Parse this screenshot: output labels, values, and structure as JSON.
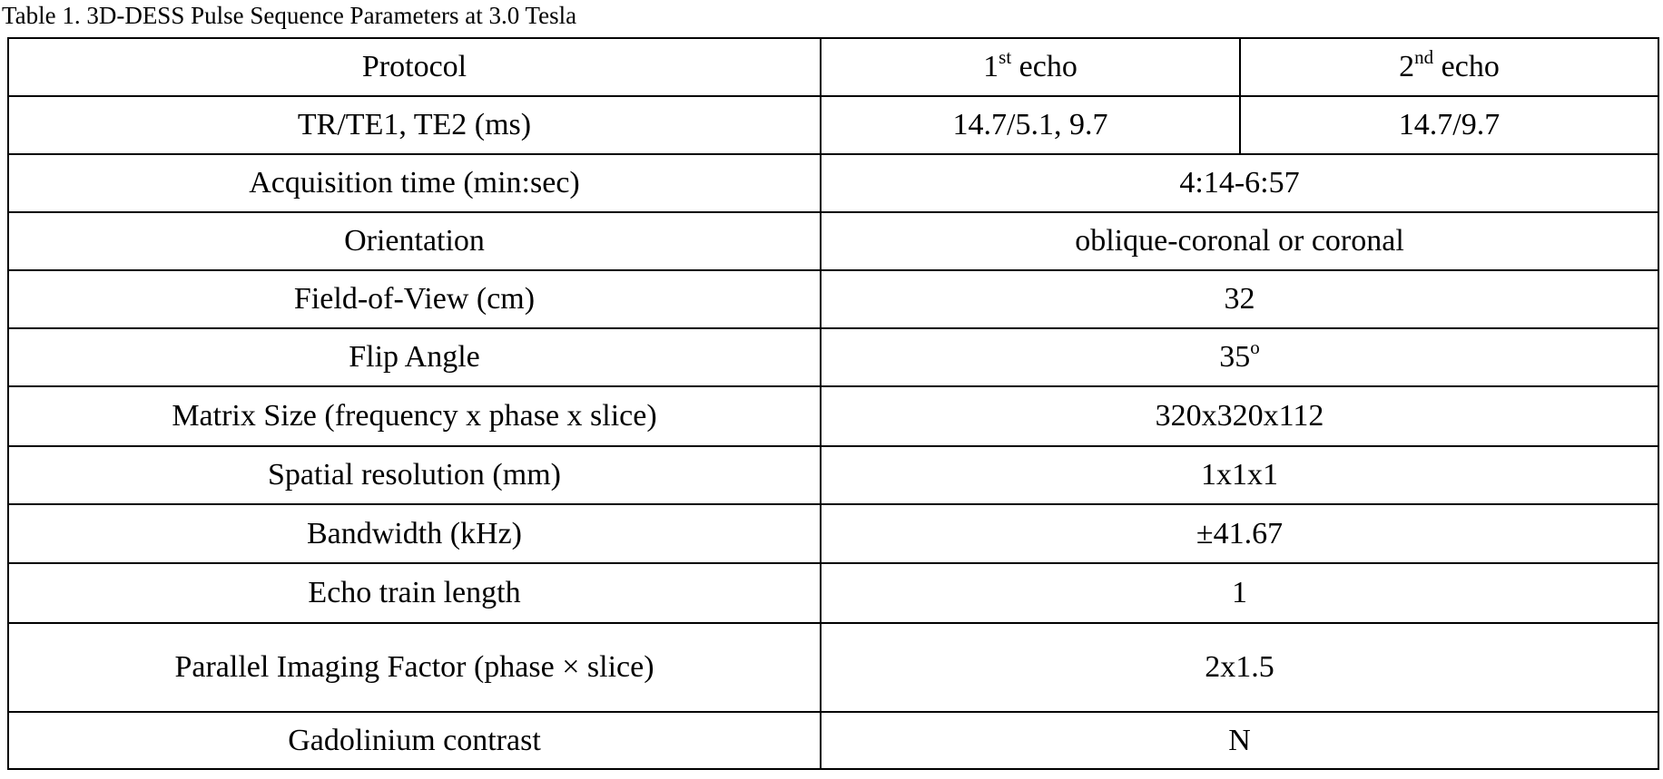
{
  "caption": "Table 1. 3D-DESS Pulse Sequence Parameters at 3.0 Tesla",
  "header": {
    "protocol": "Protocol",
    "echo1_num": "1",
    "echo1_sup": "st",
    "echo1_word": " echo",
    "echo2_num": "2",
    "echo2_sup": "nd",
    "echo2_word": " echo"
  },
  "tr_row": {
    "label": "TR/TE1, TE2 (ms)",
    "echo1": "14.7/5.1, 9.7",
    "echo2": "14.7/9.7"
  },
  "rows": [
    {
      "label": "Acquisition time (min:sec)",
      "value": "4:14-6:57"
    },
    {
      "label": "Orientation",
      "value": "oblique-coronal or coronal"
    },
    {
      "label": "Field-of-View (cm)",
      "value": "32"
    },
    {
      "label": "Flip Angle",
      "value": "35",
      "sup": "o"
    },
    {
      "label": "Matrix Size (frequency x phase x slice)",
      "value": "320x320x112"
    },
    {
      "label": "Spatial resolution (mm)",
      "value": "1x1x1"
    },
    {
      "label": "Bandwidth (kHz)",
      "value": "±41.67"
    },
    {
      "label": "Echo train length",
      "value": "1"
    },
    {
      "label": "Parallel Imaging Factor (phase × slice)",
      "value": "2x1.5"
    },
    {
      "label": "Gadolinium contrast",
      "value": "N"
    }
  ]
}
